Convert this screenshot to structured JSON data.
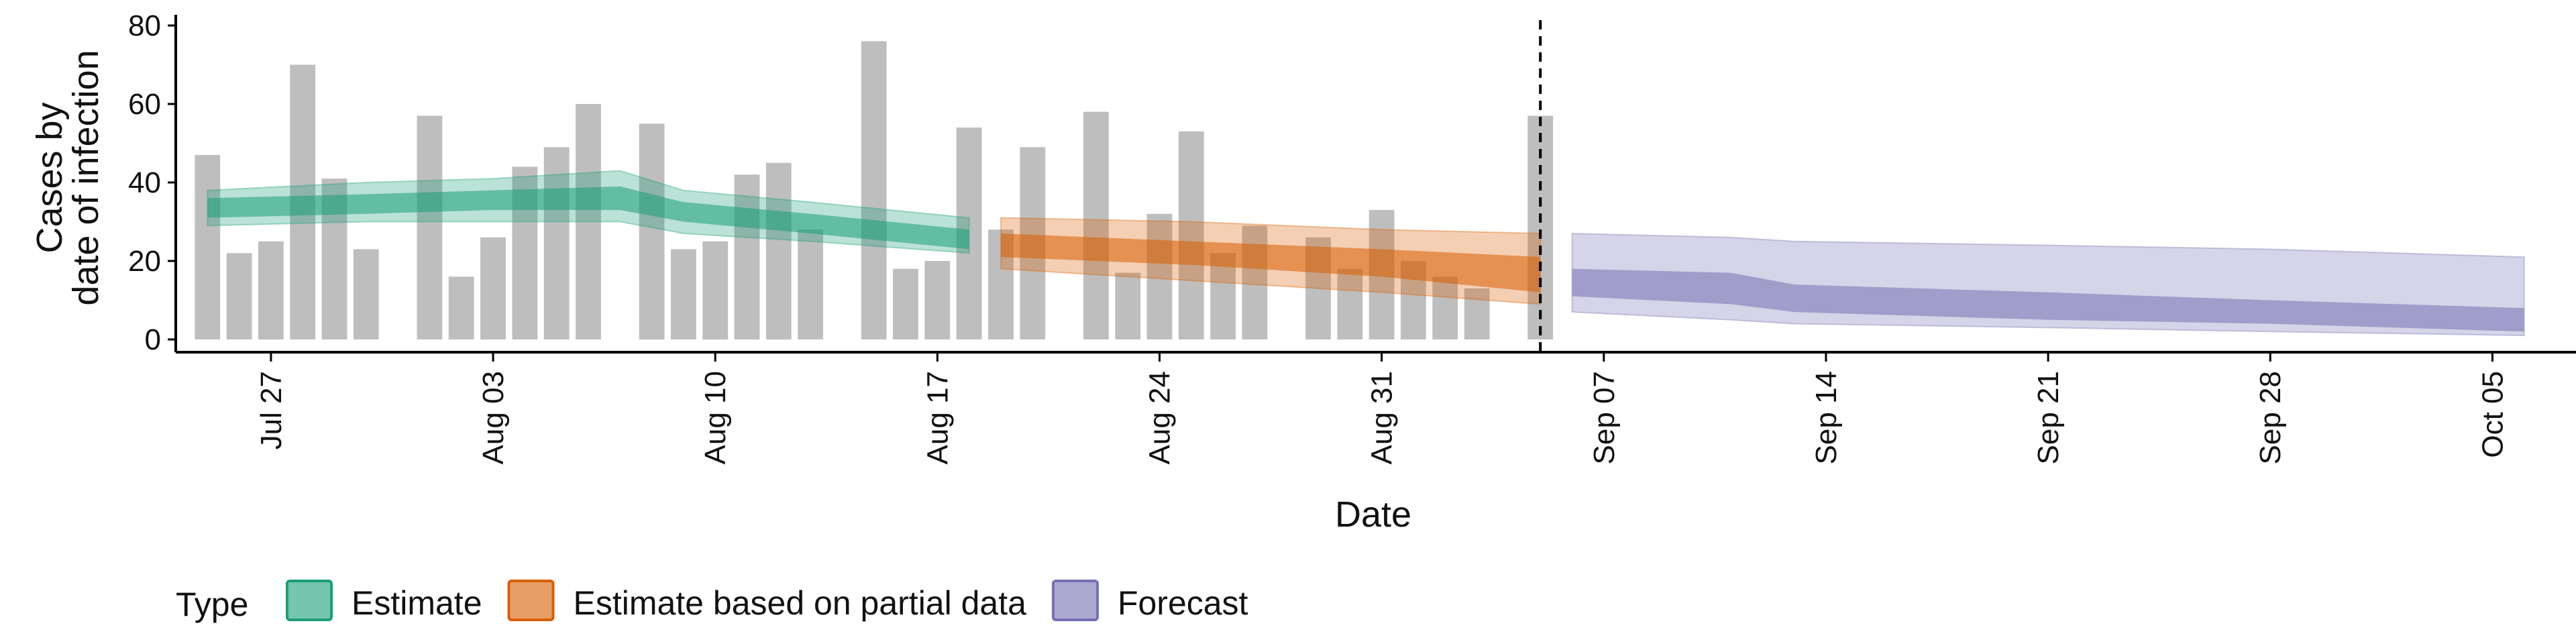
{
  "chart_data": {
    "type": "bar",
    "xlabel": "Date",
    "ylabel": [
      "Cases by",
      "date of infection"
    ],
    "ylim": [
      0,
      80
    ],
    "yticks": [
      0,
      20,
      40,
      60,
      80
    ],
    "x_tick_labels": [
      {
        "date": "2020-07-27",
        "label": "Jul 27"
      },
      {
        "date": "2020-08-03",
        "label": "Aug 03"
      },
      {
        "date": "2020-08-10",
        "label": "Aug 10"
      },
      {
        "date": "2020-08-17",
        "label": "Aug 17"
      },
      {
        "date": "2020-08-24",
        "label": "Aug 24"
      },
      {
        "date": "2020-08-31",
        "label": "Aug 31"
      },
      {
        "date": "2020-09-07",
        "label": "Sep 07"
      },
      {
        "date": "2020-09-14",
        "label": "Sep 14"
      },
      {
        "date": "2020-09-21",
        "label": "Sep 21"
      },
      {
        "date": "2020-09-28",
        "label": "Sep 28"
      },
      {
        "date": "2020-10-05",
        "label": "Oct 05"
      }
    ],
    "xlim": [
      "2020-07-24",
      "2020-10-07"
    ],
    "bar_color": "#bebebe",
    "bars": [
      {
        "date": "2020-07-25",
        "value": 47
      },
      {
        "date": "2020-07-26",
        "value": 22
      },
      {
        "date": "2020-07-27",
        "value": 25
      },
      {
        "date": "2020-07-28",
        "value": 70
      },
      {
        "date": "2020-07-29",
        "value": 41
      },
      {
        "date": "2020-07-30",
        "value": 23
      },
      {
        "date": "2020-08-01",
        "value": 57
      },
      {
        "date": "2020-08-02",
        "value": 16
      },
      {
        "date": "2020-08-03",
        "value": 26
      },
      {
        "date": "2020-08-04",
        "value": 44
      },
      {
        "date": "2020-08-05",
        "value": 49
      },
      {
        "date": "2020-08-06",
        "value": 60
      },
      {
        "date": "2020-08-08",
        "value": 55
      },
      {
        "date": "2020-08-09",
        "value": 23
      },
      {
        "date": "2020-08-10",
        "value": 25
      },
      {
        "date": "2020-08-11",
        "value": 42
      },
      {
        "date": "2020-08-12",
        "value": 45
      },
      {
        "date": "2020-08-13",
        "value": 28
      },
      {
        "date": "2020-08-15",
        "value": 76
      },
      {
        "date": "2020-08-16",
        "value": 18
      },
      {
        "date": "2020-08-17",
        "value": 20
      },
      {
        "date": "2020-08-18",
        "value": 54
      },
      {
        "date": "2020-08-19",
        "value": 28
      },
      {
        "date": "2020-08-20",
        "value": 49
      },
      {
        "date": "2020-08-22",
        "value": 58
      },
      {
        "date": "2020-08-23",
        "value": 17
      },
      {
        "date": "2020-08-24",
        "value": 32
      },
      {
        "date": "2020-08-25",
        "value": 53
      },
      {
        "date": "2020-08-26",
        "value": 22
      },
      {
        "date": "2020-08-27",
        "value": 29
      },
      {
        "date": "2020-08-29",
        "value": 26
      },
      {
        "date": "2020-08-30",
        "value": 18
      },
      {
        "date": "2020-08-31",
        "value": 33
      },
      {
        "date": "2020-09-01",
        "value": 20
      },
      {
        "date": "2020-09-02",
        "value": 16
      },
      {
        "date": "2020-09-03",
        "value": 13
      },
      {
        "date": "2020-09-05",
        "value": 57
      }
    ],
    "vline_date": "2020-09-05",
    "series": [
      {
        "name": "Estimate",
        "color": "#1b9e77",
        "points": [
          {
            "date": "2020-07-25",
            "outer": [
              29,
              38
            ],
            "inner": [
              31,
              36
            ]
          },
          {
            "date": "2020-07-30",
            "outer": [
              30,
              40
            ],
            "inner": [
              32,
              37
            ]
          },
          {
            "date": "2020-08-03",
            "outer": [
              30,
              41
            ],
            "inner": [
              33,
              38
            ]
          },
          {
            "date": "2020-08-07",
            "outer": [
              30,
              43
            ],
            "inner": [
              33,
              39
            ]
          },
          {
            "date": "2020-08-09",
            "outer": [
              27,
              38
            ],
            "inner": [
              30,
              35
            ]
          },
          {
            "date": "2020-08-13",
            "outer": [
              25,
              35
            ],
            "inner": [
              27,
              32
            ]
          },
          {
            "date": "2020-08-18",
            "outer": [
              22,
              31
            ],
            "inner": [
              23,
              28
            ]
          }
        ]
      },
      {
        "name": "Estimate based on partial data",
        "color": "#d95f02",
        "points": [
          {
            "date": "2020-08-19",
            "outer": [
              18,
              31
            ],
            "inner": [
              21,
              27
            ]
          },
          {
            "date": "2020-08-25",
            "outer": [
              15,
              30
            ],
            "inner": [
              19,
              25
            ]
          },
          {
            "date": "2020-08-31",
            "outer": [
              12,
              28
            ],
            "inner": [
              16,
              23
            ]
          },
          {
            "date": "2020-09-05",
            "outer": [
              9,
              27
            ],
            "inner": [
              12,
              21
            ]
          }
        ]
      },
      {
        "name": "Forecast",
        "color": "#7570b3",
        "points": [
          {
            "date": "2020-09-06",
            "outer": [
              7,
              27
            ],
            "inner": [
              11,
              18
            ]
          },
          {
            "date": "2020-09-11",
            "outer": [
              5,
              26
            ],
            "inner": [
              9,
              17
            ]
          },
          {
            "date": "2020-09-13",
            "outer": [
              4,
              25
            ],
            "inner": [
              7,
              14
            ]
          },
          {
            "date": "2020-09-21",
            "outer": [
              3,
              24
            ],
            "inner": [
              5,
              12
            ]
          },
          {
            "date": "2020-09-28",
            "outer": [
              2,
              23
            ],
            "inner": [
              4,
              10
            ]
          },
          {
            "date": "2020-10-06",
            "outer": [
              1,
              21
            ],
            "inner": [
              2,
              8
            ]
          }
        ]
      }
    ],
    "legend": {
      "title": "Type",
      "position": "bottom",
      "items": [
        "Estimate",
        "Estimate based on partial data",
        "Forecast"
      ]
    },
    "grid": false
  }
}
